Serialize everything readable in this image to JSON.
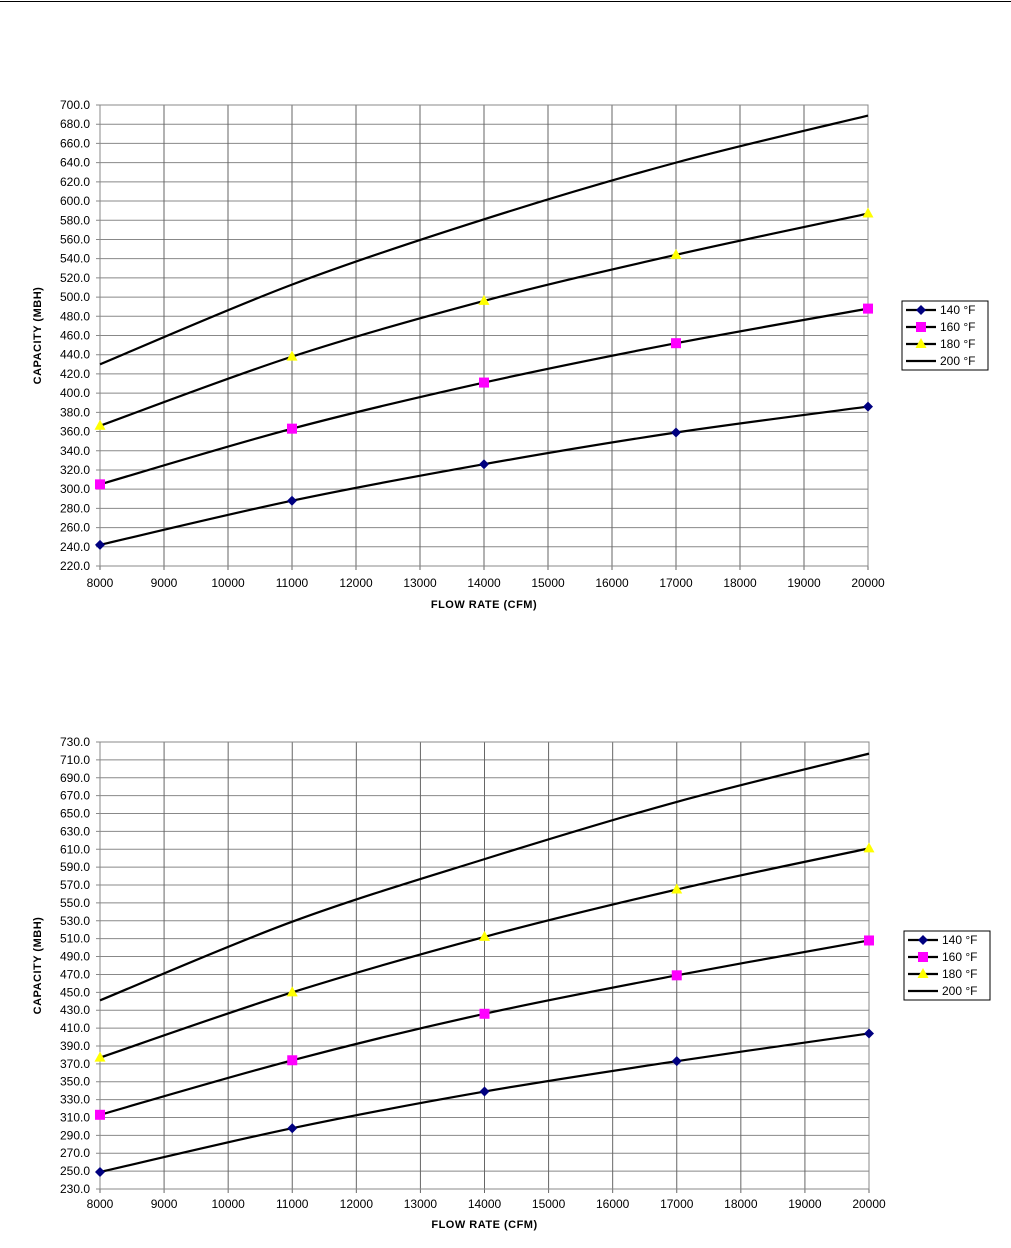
{
  "chart_data": [
    {
      "type": "line",
      "title": "",
      "xlabel": "FLOW RATE (CFM)",
      "ylabel": "CAPACITY (MBH)",
      "xlim": [
        8000,
        20000
      ],
      "ylim": [
        220,
        700
      ],
      "xticks": [
        8000,
        9000,
        10000,
        11000,
        12000,
        13000,
        14000,
        15000,
        16000,
        17000,
        18000,
        19000,
        20000
      ],
      "ystep": 20,
      "grid": true,
      "legend_position": "right",
      "x": [
        8000,
        11000,
        14000,
        17000,
        20000
      ],
      "series": [
        {
          "name": "140 °F",
          "marker": "diamond",
          "color": "#000080",
          "values": [
            242,
            288,
            326,
            359,
            386
          ]
        },
        {
          "name": "160 °F",
          "marker": "square",
          "color": "#FF00FF",
          "values": [
            305,
            363,
            411,
            452,
            488
          ]
        },
        {
          "name": "180 °F",
          "marker": "triangle",
          "color": "#FFFF00",
          "values": [
            366,
            438,
            496,
            544,
            587
          ]
        },
        {
          "name": "200 °F",
          "marker": "none",
          "color": "#000000",
          "values": [
            430,
            513,
            581,
            640,
            689
          ]
        }
      ]
    },
    {
      "type": "line",
      "title": "",
      "xlabel": "FLOW RATE (CFM)",
      "ylabel": "CAPACITY (MBH)",
      "xlim": [
        8000,
        20000
      ],
      "ylim": [
        230,
        730
      ],
      "xticks": [
        8000,
        9000,
        10000,
        11000,
        12000,
        13000,
        14000,
        15000,
        16000,
        17000,
        18000,
        19000,
        20000
      ],
      "ystep": 20,
      "grid": true,
      "legend_position": "right",
      "x": [
        8000,
        11000,
        14000,
        17000,
        20000
      ],
      "series": [
        {
          "name": "140 °F",
          "marker": "diamond",
          "color": "#000080",
          "values": [
            249,
            298,
            339,
            373,
            404
          ]
        },
        {
          "name": "160 °F",
          "marker": "square",
          "color": "#FF00FF",
          "values": [
            313,
            374,
            426,
            469,
            508
          ]
        },
        {
          "name": "180 °F",
          "marker": "triangle",
          "color": "#FFFF00",
          "values": [
            377,
            450,
            512,
            565,
            611
          ]
        },
        {
          "name": "200 °F",
          "marker": "none",
          "color": "#000000",
          "values": [
            441,
            529,
            599,
            663,
            717
          ]
        }
      ]
    }
  ]
}
